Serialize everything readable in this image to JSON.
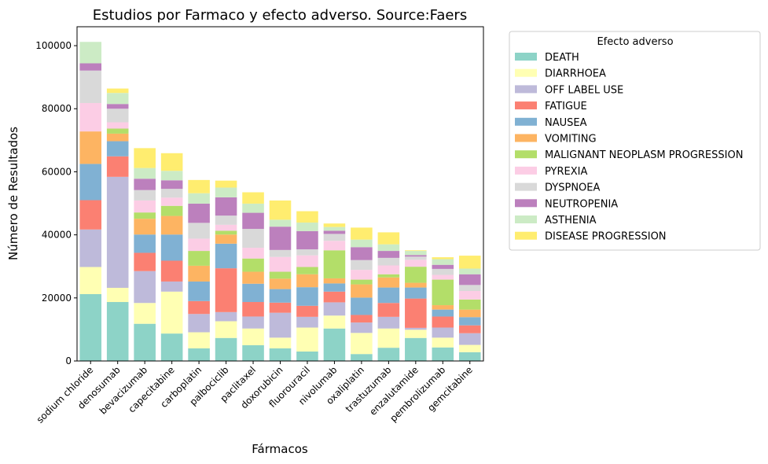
{
  "chart_data": {
    "type": "bar",
    "stacked": true,
    "title": "Estudios por Farmaco y efecto adverso. Source:Faers",
    "xlabel": "Fármacos",
    "ylabel": "Número de Resultados",
    "ylim": [
      0,
      106000
    ],
    "yticks": [
      0,
      20000,
      40000,
      60000,
      80000,
      100000
    ],
    "ytick_labels": [
      "0",
      "20000",
      "40000",
      "60000",
      "80000",
      "100000"
    ],
    "grid": false,
    "legend": {
      "title": "Efecto adverso",
      "placement": "outside-right"
    },
    "categories": [
      "sodium chloride",
      "denosumab",
      "bevacizumab",
      "capecitabine",
      "carboplatin",
      "palbociclib",
      "paclitaxel",
      "doxorubicin",
      "fluorouracil",
      "nivolumab",
      "oxaliplatin",
      "trastuzumab",
      "enzalutamide",
      "pembrolizumab",
      "gemcitabine"
    ],
    "series": [
      {
        "name": "DEATH",
        "color": "#8dd3c7",
        "values": [
          21200,
          18700,
          11800,
          8700,
          4000,
          7300,
          5000,
          4000,
          3000,
          10300,
          2200,
          4200,
          7300,
          4300,
          2800
        ]
      },
      {
        "name": "DIARRHOEA",
        "color": "#ffffb3",
        "values": [
          8600,
          4500,
          6600,
          13300,
          5100,
          5300,
          5300,
          3400,
          7600,
          4100,
          6700,
          6100,
          2600,
          3100,
          2300
        ]
      },
      {
        "name": "OFF LABEL USE",
        "color": "#bebada",
        "values": [
          11900,
          35200,
          10100,
          3200,
          5800,
          2900,
          3800,
          7900,
          3400,
          4200,
          3300,
          3700,
          600,
          3200,
          3700
        ]
      },
      {
        "name": "FATIGUE",
        "color": "#fb8072",
        "values": [
          9300,
          6500,
          5800,
          6600,
          4100,
          13900,
          4600,
          3200,
          3500,
          3400,
          2400,
          4400,
          9300,
          3500,
          2500
        ]
      },
      {
        "name": "NAUSEA",
        "color": "#80b1d3",
        "values": [
          11500,
          4800,
          5800,
          8300,
          6200,
          7800,
          5800,
          4300,
          5900,
          2600,
          5500,
          4900,
          3500,
          2200,
          2600
        ]
      },
      {
        "name": "VOMITING",
        "color": "#fdb462",
        "values": [
          10300,
          2400,
          5000,
          5900,
          5000,
          2900,
          3800,
          3300,
          4100,
          1600,
          4200,
          3200,
          1500,
          1400,
          2400
        ]
      },
      {
        "name": "MALIGNANT NEOPLASM PROGRESSION",
        "color": "#b3de69",
        "values": [
          0,
          1600,
          2000,
          3200,
          4700,
          1200,
          4200,
          2200,
          2300,
          8900,
          1500,
          1000,
          5100,
          8100,
          3200
        ]
      },
      {
        "name": "PYREXIA",
        "color": "#fccde5",
        "values": [
          9000,
          2000,
          3800,
          2600,
          3900,
          1900,
          3400,
          4700,
          3700,
          3000,
          3100,
          2800,
          2200,
          1500,
          2700
        ]
      },
      {
        "name": "DYSPNOEA",
        "color": "#d9d9d9",
        "values": [
          10300,
          4300,
          3300,
          2800,
          5000,
          2900,
          6000,
          2200,
          1900,
          2200,
          3100,
          2400,
          1000,
          1900,
          1900
        ]
      },
      {
        "name": "NEUTROPENIA",
        "color": "#bc80bd",
        "values": [
          2300,
          1500,
          3600,
          2700,
          6100,
          5800,
          5100,
          7400,
          5800,
          1000,
          4100,
          2200,
          500,
          1300,
          3400
        ]
      },
      {
        "name": "ASTHENIA",
        "color": "#ccebc5",
        "values": [
          6800,
          3500,
          3400,
          3000,
          3300,
          3100,
          2900,
          2200,
          2700,
          1200,
          2400,
          2100,
          1300,
          1800,
          1800
        ]
      },
      {
        "name": "DISEASE PROGRESSION",
        "color": "#ffed6f",
        "values": [
          0,
          1400,
          6300,
          5600,
          4200,
          2200,
          3600,
          6100,
          3600,
          1100,
          3800,
          3800,
          200,
          600,
          4100
        ]
      }
    ]
  }
}
